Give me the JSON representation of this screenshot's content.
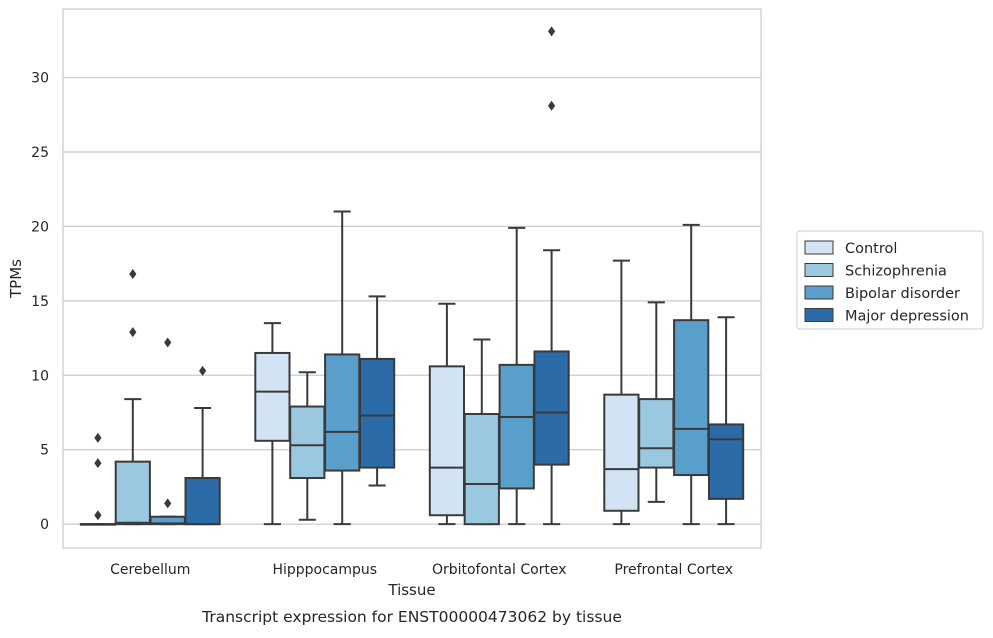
{
  "chart_data": {
    "type": "box",
    "caption": "Transcript expression for ENST00000473062 by tissue",
    "xlabel": "Tissue",
    "ylabel": "TPMs",
    "ylim": [
      -1.6,
      34.6
    ],
    "yticks": [
      0,
      5,
      10,
      15,
      20,
      25,
      30
    ],
    "grid": "horizontal",
    "legend_position": "right",
    "categories": [
      "Cerebellum",
      "Hipppocampus",
      "Orbitofontal Cortex",
      "Prefrontal Cortex"
    ],
    "series": [
      {
        "name": "Control",
        "color": "#d2e3f3",
        "boxes": [
          {
            "min": 0,
            "q1": 0,
            "median": 0,
            "q3": 0,
            "max": 0,
            "outliers": [
              0.6,
              4.1,
              5.8
            ]
          },
          {
            "min": 0,
            "q1": 5.6,
            "median": 8.9,
            "q3": 11.5,
            "max": 13.5,
            "outliers": []
          },
          {
            "min": 0,
            "q1": 0.6,
            "median": 3.8,
            "q3": 10.6,
            "max": 14.8,
            "outliers": []
          },
          {
            "min": 0,
            "q1": 0.9,
            "median": 3.7,
            "q3": 8.7,
            "max": 17.7,
            "outliers": []
          }
        ]
      },
      {
        "name": "Schizophrenia",
        "color": "#9ac8e0",
        "boxes": [
          {
            "min": 0,
            "q1": 0,
            "median": 0.1,
            "q3": 4.2,
            "max": 8.4,
            "outliers": [
              12.9,
              16.8
            ]
          },
          {
            "min": 0.3,
            "q1": 3.1,
            "median": 5.3,
            "q3": 7.9,
            "max": 10.2,
            "outliers": []
          },
          {
            "min": 0,
            "q1": 0,
            "median": 2.7,
            "q3": 7.4,
            "max": 12.4,
            "outliers": []
          },
          {
            "min": 1.5,
            "q1": 3.8,
            "median": 5.1,
            "q3": 8.4,
            "max": 14.9,
            "outliers": []
          }
        ]
      },
      {
        "name": "Bipolar disorder",
        "color": "#5a9fcb",
        "boxes": [
          {
            "min": 0,
            "q1": 0,
            "median": 0.05,
            "q3": 0.5,
            "max": 0.5,
            "outliers": [
              1.4,
              12.2
            ]
          },
          {
            "min": 0,
            "q1": 3.6,
            "median": 6.2,
            "q3": 11.4,
            "max": 21.0,
            "outliers": []
          },
          {
            "min": 0,
            "q1": 2.4,
            "median": 7.2,
            "q3": 10.7,
            "max": 19.9,
            "outliers": []
          },
          {
            "min": 0,
            "q1": 3.3,
            "median": 6.4,
            "q3": 13.7,
            "max": 20.1,
            "outliers": []
          }
        ]
      },
      {
        "name": "Major depression",
        "color": "#2b6ca8",
        "boxes": [
          {
            "min": 0,
            "q1": 0,
            "median": 0,
            "q3": 3.1,
            "max": 7.8,
            "outliers": [
              10.3
            ]
          },
          {
            "min": 2.6,
            "q1": 3.8,
            "median": 7.3,
            "q3": 11.1,
            "max": 15.3,
            "outliers": []
          },
          {
            "min": 0,
            "q1": 4.0,
            "median": 7.5,
            "q3": 11.6,
            "max": 18.4,
            "outliers": [
              28.1,
              33.1
            ]
          },
          {
            "min": 0,
            "q1": 1.7,
            "median": 5.7,
            "q3": 6.7,
            "max": 13.9,
            "outliers": []
          }
        ]
      }
    ]
  }
}
